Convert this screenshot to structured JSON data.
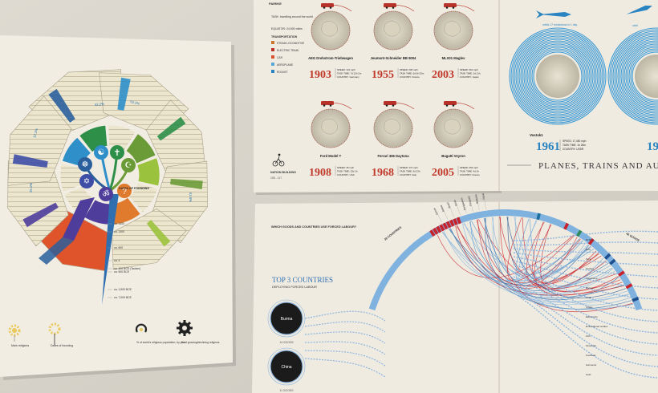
{
  "religions": {
    "percents": [
      "12.1%",
      "25.1%",
      "32.2%",
      "53.1%",
      "61.5%"
    ],
    "dates_heading": "DATES OF FOUNDING",
    "dates": [
      "ca. 1400",
      "ca. 1300",
      "ca. 600",
      "ca. 4",
      "ca. 400 BCE (Taoism)",
      "ca. 500 BCE",
      "ca. 1,500 BCE",
      "ca. 7,000 BCE"
    ],
    "legend": [
      "Main religions",
      "Dates of founding",
      "% of world's religious population, by year",
      "% of growing/declining religions"
    ]
  },
  "trains": {
    "header_label": "PAIRIKE",
    "intro": [
      "TASK: travelling around the world",
      "EQUATOR: 24,900 miles"
    ],
    "transport_heading": "TRANSPORTATION",
    "legend": [
      {
        "label": "STEAM LOCOMOTIVE",
        "color": "#c9762e"
      },
      {
        "label": "ELECTRIC TRAIN",
        "color": "#b8322a"
      },
      {
        "label": "CAR",
        "color": "#d9512c"
      },
      {
        "label": "AEROPLANE",
        "color": "#5aa6d6"
      },
      {
        "label": "ROCKET",
        "color": "#2a84c2"
      }
    ],
    "footer": [
      "NATION BUILDING",
      "108 - 117"
    ],
    "vehicles": [
      {
        "name": "AEG Drehstrom-Triebwagen",
        "year": "1903",
        "stats": [
          "SPEED: 131 mph",
          "TASK TIME: 7d 22h 2m",
          "COUNTRY: Germany"
        ]
      },
      {
        "name": "Jeumont-Schneider BB 9004",
        "year": "1955",
        "stats": [
          "SPEED: 206 mph",
          "TASK TIME: 5d 0h 53m",
          "COUNTRY: France"
        ]
      },
      {
        "name": "MLX01 Maglev",
        "year": "2003",
        "stats": [
          "SPEED: 361 mph",
          "TASK TIME: 2d 21h",
          "COUNTRY: Japan"
        ]
      },
      {
        "name": "Ford Model T",
        "year": "1908",
        "stats": [
          "SPEED: 45 mph",
          "TASK TIME: 23d 1h",
          "COUNTRY: USA"
        ]
      },
      {
        "name": "Ferrari 365 Daytona",
        "year": "1968",
        "stats": [
          "SPEED: 174 mph",
          "TASK TIME: 5d 23h",
          "COUNTRY: Italy"
        ]
      },
      {
        "name": "Bugatti Veyron",
        "year": "2005",
        "stats": [
          "SPEED: 254 mph",
          "TASK TIME: 4d 2h",
          "COUNTRY: France"
        ]
      }
    ]
  },
  "rockets": {
    "vehicle": "Vostok1",
    "year": "1961",
    "year2": "19",
    "stats": [
      "SPEED: 17,450 mph",
      "TASK TIME: 1h 26m",
      "COUNTRY: USSR"
    ],
    "orbit_label": "orbits 17 revolutions in 1 day",
    "orbit_label2": "orbit",
    "title": "PLANES, TRAINS AND AUT"
  },
  "forced": {
    "question": "WHICH GOODS AND COUNTRIES USE FORCED LABOUR?",
    "top3_title": "TOP 3 COUNTRIES",
    "top3_sub": "DEPLOYING FORCED LABOUR",
    "countries": [
      {
        "name": "Burma",
        "goods": "14 GOODS"
      },
      {
        "name": "China",
        "goods": "11 GOODS"
      }
    ],
    "countries_label": "29 COUNTRIES",
    "goods_label": "46 GOODS",
    "left_labels": [
      "Burma",
      "Bolivia",
      "Brazil",
      "Benin",
      "Bangladesh",
      "Paraguay",
      "Malaysia",
      "Nepal"
    ],
    "right_labels": [
      "Rubber",
      "Rice",
      "Toys",
      "Textiles",
      "Sugarcane",
      "Shrimp",
      "Coal",
      "Cotton",
      "Electronics",
      "Embroidered textiles",
      "Fish",
      "Fireworks",
      "Footwear",
      "Garments",
      "Gold"
    ]
  }
}
